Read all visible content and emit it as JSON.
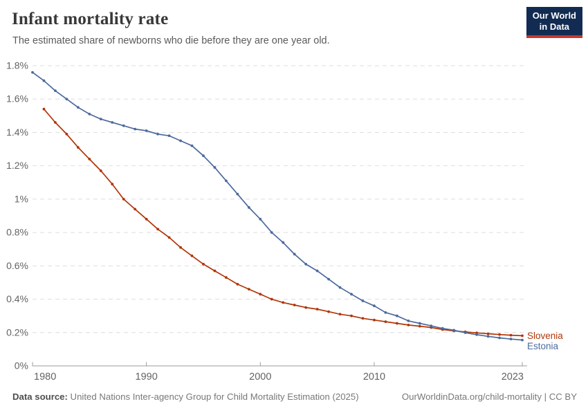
{
  "header": {
    "title": "Infant mortality rate",
    "subtitle": "The estimated share of newborns who die before they are one year old."
  },
  "logo": {
    "line1": "Our World",
    "line2": "in Data"
  },
  "chart_data": {
    "type": "line",
    "title": "Infant mortality rate",
    "unit": "%",
    "xlim": [
      1980,
      2023
    ],
    "ylim": [
      0,
      1.8
    ],
    "grid": "horizontal-dashed",
    "legend_position": "right-end-labels",
    "x_ticks": [
      {
        "value": 1980,
        "label": "1980"
      },
      {
        "value": 1990,
        "label": "1990"
      },
      {
        "value": 2000,
        "label": "2000"
      },
      {
        "value": 2010,
        "label": "2010"
      },
      {
        "value": 2023,
        "label": "2023"
      }
    ],
    "y_ticks": [
      {
        "value": 0,
        "label": "0%"
      },
      {
        "value": 0.2,
        "label": "0.2%"
      },
      {
        "value": 0.4,
        "label": "0.4%"
      },
      {
        "value": 0.6,
        "label": "0.6%"
      },
      {
        "value": 0.8,
        "label": "0.8%"
      },
      {
        "value": 1,
        "label": "1%"
      },
      {
        "value": 1.2,
        "label": "1.2%"
      },
      {
        "value": 1.4,
        "label": "1.4%"
      },
      {
        "value": 1.6,
        "label": "1.6%"
      },
      {
        "value": 1.8,
        "label": "1.8%"
      }
    ],
    "series": [
      {
        "name": "Slovenia",
        "color": "#B13507",
        "start_year": 1981,
        "values": [
          1.54,
          1.46,
          1.39,
          1.31,
          1.24,
          1.17,
          1.09,
          1.0,
          0.94,
          0.88,
          0.82,
          0.77,
          0.71,
          0.66,
          0.61,
          0.57,
          0.53,
          0.49,
          0.46,
          0.43,
          0.4,
          0.38,
          0.365,
          0.35,
          0.34,
          0.325,
          0.31,
          0.3,
          0.285,
          0.275,
          0.265,
          0.255,
          0.245,
          0.238,
          0.23,
          0.218,
          0.21,
          0.204,
          0.198,
          0.193,
          0.188,
          0.184,
          0.181
        ]
      },
      {
        "name": "Estonia",
        "color": "#4C6A9C",
        "start_year": 1980,
        "values": [
          1.76,
          1.71,
          1.65,
          1.6,
          1.55,
          1.51,
          1.48,
          1.46,
          1.44,
          1.42,
          1.41,
          1.39,
          1.38,
          1.35,
          1.32,
          1.26,
          1.19,
          1.11,
          1.03,
          0.95,
          0.88,
          0.8,
          0.74,
          0.67,
          0.61,
          0.57,
          0.52,
          0.47,
          0.43,
          0.39,
          0.36,
          0.32,
          0.3,
          0.27,
          0.255,
          0.24,
          0.225,
          0.214,
          0.199,
          0.187,
          0.177,
          0.168,
          0.161,
          0.155
        ]
      }
    ]
  },
  "footer": {
    "datasource_label": "Data source:",
    "datasource_text": " United Nations Inter-agency Group for Child Mortality Estimation (2025)",
    "license_text": "OurWorldinData.org/child-mortality | CC BY"
  },
  "colors": {
    "grid": "#dedede",
    "axis": "#9a9a9a",
    "tick_text": "#636363",
    "slovenia": "#B13507",
    "estonia": "#4C6A9C"
  }
}
